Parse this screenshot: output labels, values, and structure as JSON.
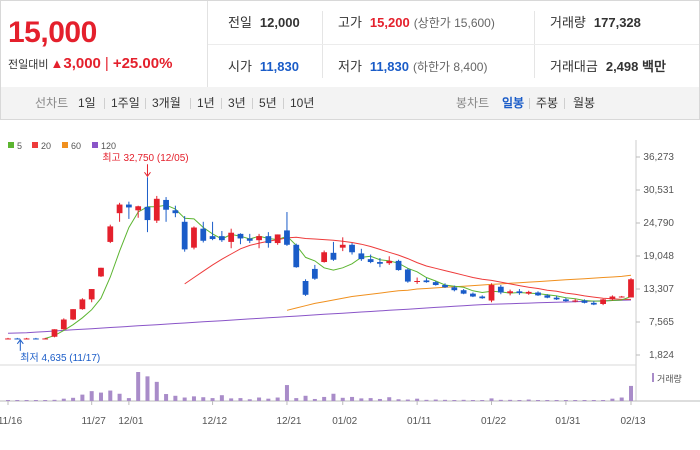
{
  "quote": {
    "price": "15,000",
    "change_label": "전일대비",
    "change_amount": "3,000",
    "change_percent": "+25.00%",
    "stats": [
      {
        "label": "전일",
        "value": "12,000"
      },
      {
        "label": "고가",
        "value": "15,200",
        "sub": "(상한가 15,600)"
      },
      {
        "label": "거래량",
        "value": "177,328"
      },
      {
        "label": "시가",
        "value": "11,830"
      },
      {
        "label": "저가",
        "value": "11,830",
        "sub": "(하한가 8,400)"
      },
      {
        "label": "거래대금",
        "value": "2,498 백만"
      }
    ]
  },
  "tabs": {
    "line_heading": "선차트",
    "line": [
      "1일",
      "1주일",
      "3개월",
      "1년",
      "3년",
      "5년",
      "10년"
    ],
    "candle_heading": "봉차트",
    "candle": [
      "일봉",
      "주봉",
      "월봉"
    ]
  },
  "colors": {
    "up": "#e4202c",
    "down": "#1a5cc8",
    "ma5": "#5cb531",
    "ma20": "#ee3b3b",
    "ma60": "#f0901e",
    "ma120": "#8a55c8",
    "volume": "#a98cc9"
  },
  "chart_data": {
    "type": "candlestick",
    "legend": [
      {
        "label": "5",
        "color": "#5cb531"
      },
      {
        "label": "20",
        "color": "#ee3b3b"
      },
      {
        "label": "60",
        "color": "#f0901e"
      },
      {
        "label": "120",
        "color": "#8a55c8"
      }
    ],
    "y_ticks": [
      "36,273",
      "30,531",
      "24,790",
      "19,048",
      "13,307",
      "7,565",
      "1,824"
    ],
    "y_range": [
      1824,
      36273
    ],
    "x_ticks": [
      {
        "label": "11/16",
        "i": 0
      },
      {
        "label": "11/27",
        "i": 9
      },
      {
        "label": "12/01",
        "i": 13
      },
      {
        "label": "12/12",
        "i": 22
      },
      {
        "label": "12/21",
        "i": 30
      },
      {
        "label": "01/02",
        "i": 36
      },
      {
        "label": "01/11",
        "i": 44
      },
      {
        "label": "01/22",
        "i": 52
      },
      {
        "label": "01/31",
        "i": 60
      },
      {
        "label": "02/13",
        "i": 67
      }
    ],
    "annotations": {
      "high": {
        "label": "최고 32,750 (12/05)",
        "i": 15,
        "value": 32750
      },
      "low": {
        "label": "최저 4,635 (11/17)",
        "i": 1,
        "value": 4635
      }
    },
    "volume_label": "거래량",
    "candles": [
      {
        "o": 4700,
        "h": 4800,
        "l": 4650,
        "c": 4700
      },
      {
        "o": 4700,
        "h": 4800,
        "l": 4635,
        "c": 4680
      },
      {
        "o": 4680,
        "h": 4800,
        "l": 4650,
        "c": 4700
      },
      {
        "o": 4700,
        "h": 4800,
        "l": 4650,
        "c": 4690
      },
      {
        "o": 4690,
        "h": 4800,
        "l": 4650,
        "c": 4700
      },
      {
        "o": 5000,
        "h": 6300,
        "l": 4900,
        "c": 6300
      },
      {
        "o": 6300,
        "h": 8200,
        "l": 6200,
        "c": 8000
      },
      {
        "o": 8000,
        "h": 9800,
        "l": 7900,
        "c": 9800
      },
      {
        "o": 9800,
        "h": 11700,
        "l": 9700,
        "c": 11500
      },
      {
        "o": 11500,
        "h": 13300,
        "l": 11000,
        "c": 13300
      },
      {
        "o": 15500,
        "h": 17000,
        "l": 15400,
        "c": 17000
      },
      {
        "o": 21500,
        "h": 24500,
        "l": 21300,
        "c": 24200
      },
      {
        "o": 26500,
        "h": 28300,
        "l": 25000,
        "c": 28000
      },
      {
        "o": 28000,
        "h": 28500,
        "l": 25500,
        "c": 27500
      },
      {
        "o": 27000,
        "h": 27800,
        "l": 25700,
        "c": 27700
      },
      {
        "o": 27600,
        "h": 32750,
        "l": 23200,
        "c": 25300
      },
      {
        "o": 25200,
        "h": 29500,
        "l": 24800,
        "c": 29000
      },
      {
        "o": 28800,
        "h": 29300,
        "l": 25000,
        "c": 27100
      },
      {
        "o": 27000,
        "h": 27800,
        "l": 25800,
        "c": 26500
      },
      {
        "o": 25000,
        "h": 26000,
        "l": 19800,
        "c": 20200
      },
      {
        "o": 20500,
        "h": 24200,
        "l": 20200,
        "c": 24000
      },
      {
        "o": 23800,
        "h": 25000,
        "l": 21400,
        "c": 21700
      },
      {
        "o": 22500,
        "h": 25000,
        "l": 21800,
        "c": 22000
      },
      {
        "o": 22500,
        "h": 23400,
        "l": 21500,
        "c": 21800
      },
      {
        "o": 21500,
        "h": 23800,
        "l": 20400,
        "c": 23100
      },
      {
        "o": 22900,
        "h": 23000,
        "l": 21100,
        "c": 22100
      },
      {
        "o": 22100,
        "h": 22900,
        "l": 21300,
        "c": 21700
      },
      {
        "o": 21800,
        "h": 22900,
        "l": 20400,
        "c": 22500
      },
      {
        "o": 22500,
        "h": 23200,
        "l": 20500,
        "c": 21300
      },
      {
        "o": 21300,
        "h": 22800,
        "l": 21000,
        "c": 22800
      },
      {
        "o": 23500,
        "h": 26700,
        "l": 20800,
        "c": 21000
      },
      {
        "o": 21000,
        "h": 21200,
        "l": 17000,
        "c": 17100
      },
      {
        "o": 14700,
        "h": 15000,
        "l": 12100,
        "c": 12300
      },
      {
        "o": 16800,
        "h": 17500,
        "l": 14900,
        "c": 15100
      },
      {
        "o": 18000,
        "h": 20000,
        "l": 17900,
        "c": 19700
      },
      {
        "o": 19600,
        "h": 21500,
        "l": 18200,
        "c": 18400
      },
      {
        "o": 20500,
        "h": 22300,
        "l": 19900,
        "c": 21000
      },
      {
        "o": 21000,
        "h": 21300,
        "l": 19300,
        "c": 19700
      },
      {
        "o": 19500,
        "h": 20300,
        "l": 18200,
        "c": 18500
      },
      {
        "o": 18500,
        "h": 19300,
        "l": 17800,
        "c": 18000
      },
      {
        "o": 18000,
        "h": 18700,
        "l": 17100,
        "c": 17700
      },
      {
        "o": 17800,
        "h": 19000,
        "l": 17500,
        "c": 18200
      },
      {
        "o": 18200,
        "h": 18400,
        "l": 16500,
        "c": 16600
      },
      {
        "o": 16700,
        "h": 16900,
        "l": 14400,
        "c": 14600
      },
      {
        "o": 14600,
        "h": 15300,
        "l": 14200,
        "c": 14700
      },
      {
        "o": 14800,
        "h": 15200,
        "l": 14400,
        "c": 14500
      },
      {
        "o": 14500,
        "h": 14700,
        "l": 13900,
        "c": 14000
      },
      {
        "o": 14000,
        "h": 14300,
        "l": 13500,
        "c": 13600
      },
      {
        "o": 13600,
        "h": 13900,
        "l": 12900,
        "c": 13100
      },
      {
        "o": 13100,
        "h": 13300,
        "l": 12400,
        "c": 12500
      },
      {
        "o": 12500,
        "h": 12700,
        "l": 11900,
        "c": 12000
      },
      {
        "o": 12000,
        "h": 12200,
        "l": 11600,
        "c": 11700
      },
      {
        "o": 11300,
        "h": 14300,
        "l": 11000,
        "c": 14000
      },
      {
        "o": 13700,
        "h": 14000,
        "l": 12400,
        "c": 12700
      },
      {
        "o": 12600,
        "h": 13200,
        "l": 12200,
        "c": 12900
      },
      {
        "o": 12900,
        "h": 13300,
        "l": 12300,
        "c": 12600
      },
      {
        "o": 12500,
        "h": 13000,
        "l": 12300,
        "c": 12800
      },
      {
        "o": 12700,
        "h": 12900,
        "l": 12100,
        "c": 12200
      },
      {
        "o": 12200,
        "h": 12400,
        "l": 11700,
        "c": 11800
      },
      {
        "o": 11800,
        "h": 12100,
        "l": 11400,
        "c": 11500
      },
      {
        "o": 11500,
        "h": 11800,
        "l": 11100,
        "c": 11200
      },
      {
        "o": 11200,
        "h": 11600,
        "l": 11000,
        "c": 11300
      },
      {
        "o": 11300,
        "h": 11500,
        "l": 10800,
        "c": 10900
      },
      {
        "o": 10900,
        "h": 11200,
        "l": 10500,
        "c": 10600
      },
      {
        "o": 10700,
        "h": 11600,
        "l": 10500,
        "c": 11500
      },
      {
        "o": 11500,
        "h": 12200,
        "l": 11300,
        "c": 12000
      },
      {
        "o": 12000,
        "h": 12100,
        "l": 11800,
        "c": 12000
      },
      {
        "o": 11830,
        "h": 15200,
        "l": 11830,
        "c": 15000
      }
    ],
    "ma": {
      "ma5": [
        null,
        null,
        null,
        null,
        4700,
        5200,
        6100,
        7100,
        8300,
        9700,
        11700,
        15400,
        19900,
        24000,
        26700,
        27600,
        27600,
        27900,
        27200,
        25600,
        25500,
        24000,
        22900,
        22000,
        22800,
        22500,
        22000,
        22500,
        22100,
        21900,
        22500,
        20900,
        18800,
        18200,
        17000,
        16600,
        17000,
        17700,
        18800,
        19000,
        18400,
        18200,
        17800,
        16900,
        16300,
        15300,
        14700,
        14000,
        13800,
        13600,
        13000,
        12700,
        12900,
        12800,
        12600,
        12700,
        12600,
        12500,
        12300,
        12100,
        11800,
        11600,
        11300,
        11200,
        11200,
        11300,
        11400,
        12000
      ],
      "ma20": [
        null,
        null,
        null,
        null,
        null,
        null,
        null,
        null,
        null,
        null,
        null,
        null,
        null,
        null,
        null,
        null,
        null,
        null,
        null,
        14200,
        15300,
        16400,
        17500,
        18500,
        19400,
        20300,
        20900,
        21300,
        21600,
        21900,
        22200,
        22300,
        22100,
        22000,
        21900,
        21800,
        21600,
        21400,
        21100,
        20700,
        20200,
        19700,
        19200,
        18600,
        17900,
        17300,
        16900,
        16500,
        16100,
        15700,
        15300,
        15000,
        14800,
        14500,
        14200,
        13900,
        13600,
        13400,
        13100,
        12900,
        12600,
        12400,
        12100,
        11900,
        11700,
        11600,
        11500,
        11500
      ],
      "ma60": [
        null,
        null,
        null,
        null,
        null,
        null,
        null,
        null,
        null,
        null,
        null,
        null,
        null,
        null,
        null,
        null,
        null,
        null,
        null,
        null,
        null,
        null,
        null,
        null,
        null,
        null,
        null,
        null,
        null,
        null,
        9600,
        10000,
        10400,
        10800,
        11100,
        11400,
        11700,
        12000,
        12200,
        12400,
        12600,
        12800,
        13000,
        13100,
        13300,
        13400,
        13500,
        13600,
        13700,
        13800,
        13900,
        14000,
        14100,
        14200,
        14300,
        14400,
        14500,
        14600,
        14700,
        14800,
        14900,
        15000,
        15100,
        15200,
        15300,
        15400,
        15500,
        15700
      ],
      "ma120": [
        5600,
        5650,
        5700,
        5800,
        5900,
        6000,
        6100,
        6200,
        6300,
        6400,
        6500,
        6600,
        6700,
        6800,
        6900,
        7000,
        7100,
        7200,
        7300,
        7400,
        7500,
        7600,
        7700,
        7800,
        7900,
        8000,
        8100,
        8200,
        8300,
        8400,
        8500,
        8600,
        8700,
        8800,
        8900,
        9000,
        9100,
        9200,
        9300,
        9400,
        9500,
        9600,
        9700,
        9800,
        9900,
        10000,
        10100,
        10200,
        10300,
        10400,
        10500,
        10600,
        10650,
        10700,
        10750,
        10800,
        10850,
        10900,
        10950,
        11000,
        11050,
        11100,
        11150,
        11200,
        11250,
        11300,
        11350,
        11400
      ]
    },
    "volume": [
      0.02,
      0.03,
      0.02,
      0.02,
      0.03,
      0.04,
      0.08,
      0.11,
      0.22,
      0.34,
      0.29,
      0.36,
      0.25,
      0.1,
      1.0,
      0.85,
      0.66,
      0.24,
      0.18,
      0.12,
      0.16,
      0.13,
      0.1,
      0.2,
      0.09,
      0.1,
      0.06,
      0.12,
      0.08,
      0.12,
      0.55,
      0.1,
      0.18,
      0.07,
      0.14,
      0.25,
      0.11,
      0.14,
      0.09,
      0.1,
      0.07,
      0.13,
      0.06,
      0.05,
      0.08,
      0.04,
      0.05,
      0.04,
      0.03,
      0.04,
      0.03,
      0.03,
      0.09,
      0.04,
      0.04,
      0.03,
      0.05,
      0.03,
      0.03,
      0.03,
      0.02,
      0.03,
      0.03,
      0.02,
      0.03,
      0.08,
      0.12,
      0.52
    ]
  }
}
